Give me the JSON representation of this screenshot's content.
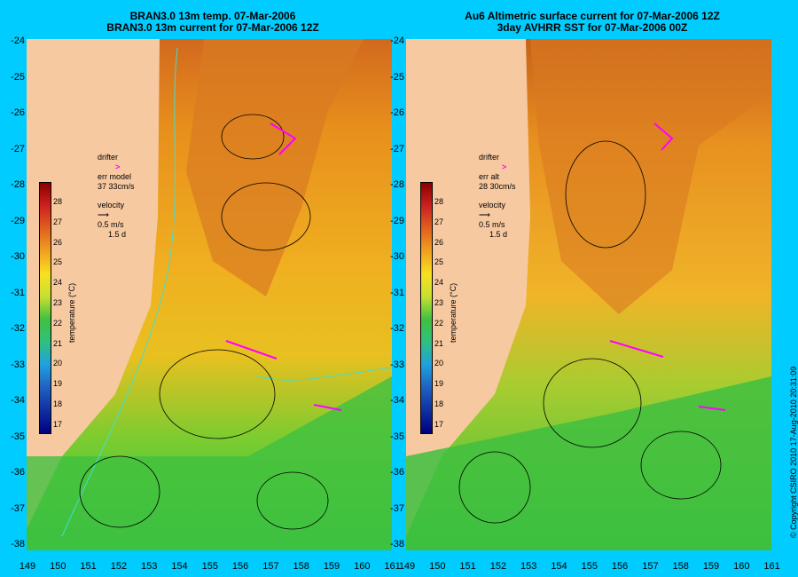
{
  "left_panel": {
    "title_line1": "BRAN3.0 13m temp. 07-Mar-2006",
    "title_line2": "BRAN3.0 13m current for 07-Mar-2006 12Z",
    "drifter_label": "drifter",
    "err_label": "err model",
    "err_value": "37 33cm/s",
    "velocity_label": "velocity",
    "velocity_scale": "0.5 m/s",
    "velocity_time": "1.5 d"
  },
  "right_panel": {
    "title_line1": "Au6 Altimetric surface current for 07-Mar-2006 12Z",
    "title_line2": "3day AVHRR SST for 07-Mar-2006 00Z",
    "drifter_label": "drifter",
    "err_label": "err alt",
    "err_value": "28 30cm/s",
    "velocity_label": "velocity",
    "velocity_scale": "0.5 m/s",
    "velocity_time": "1.5 d"
  },
  "y_ticks": [
    "-24",
    "-25",
    "-26",
    "-27",
    "-28",
    "-29",
    "-30",
    "-31",
    "-32",
    "-33",
    "-34",
    "-35",
    "-36",
    "-37",
    "-38"
  ],
  "x_ticks_left": [
    "149",
    "150",
    "151",
    "152",
    "153",
    "154",
    "155",
    "156",
    "157",
    "158",
    "159",
    "160",
    "161"
  ],
  "x_ticks_right": [
    "149",
    "150",
    "151",
    "152",
    "153",
    "154",
    "155",
    "156",
    "157",
    "158",
    "159",
    "160",
    "161"
  ],
  "colorbar": {
    "label": "temperature (°C)",
    "ticks": [
      "28",
      "27",
      "26",
      "25",
      "24",
      "23",
      "22",
      "21",
      "20",
      "19",
      "18",
      "17"
    ]
  },
  "copyright": "© Copyright CSIRO 2010   17-Aug-2010 20:31:09",
  "colors": {
    "background": "#00ccff",
    "land": "#f7c9a0",
    "drifter": "#ff00ff",
    "contour": "#40e0d0"
  }
}
